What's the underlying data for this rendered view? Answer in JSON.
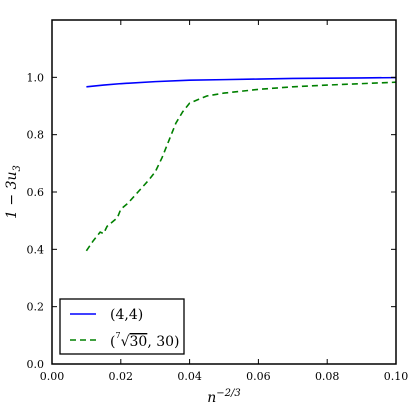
{
  "chart_data": {
    "type": "line",
    "title": "",
    "xlabel": "n^{-2/3}",
    "ylabel": "1 - 3u_3",
    "xlim": [
      0.0,
      0.1
    ],
    "ylim": [
      0.0,
      1.2
    ],
    "xticks": [
      0.0,
      0.02,
      0.04,
      0.06,
      0.08,
      0.1
    ],
    "xtick_labels": [
      "0.00",
      "0.02",
      "0.04",
      "0.06",
      "0.08",
      "0.10"
    ],
    "yticks": [
      0.0,
      0.2,
      0.4,
      0.6,
      0.8,
      1.0
    ],
    "ytick_labels": [
      "0.0",
      "0.2",
      "0.4",
      "0.6",
      "0.8",
      "1.0"
    ],
    "grid": false,
    "legend_position": "bottom-left",
    "series": [
      {
        "name": "(4,4)",
        "color": "#0000ff",
        "style": "solid",
        "x": [
          0.01,
          0.015,
          0.02,
          0.03,
          0.04,
          0.05,
          0.06,
          0.07,
          0.08,
          0.09,
          0.1
        ],
        "y": [
          0.967,
          0.973,
          0.978,
          0.985,
          0.99,
          0.992,
          0.994,
          0.996,
          0.997,
          0.998,
          0.999
        ]
      },
      {
        "name": "(√[7]{30}, 30)",
        "color": "#008000",
        "style": "dashed",
        "x": [
          0.01,
          0.012,
          0.014,
          0.015,
          0.016,
          0.017,
          0.018,
          0.019,
          0.02,
          0.022,
          0.025,
          0.028,
          0.03,
          0.032,
          0.034,
          0.036,
          0.038,
          0.04,
          0.042,
          0.045,
          0.05,
          0.06,
          0.07,
          0.08,
          0.09,
          0.1
        ],
        "y": [
          0.395,
          0.43,
          0.46,
          0.455,
          0.48,
          0.49,
          0.5,
          0.51,
          0.54,
          0.56,
          0.6,
          0.64,
          0.67,
          0.72,
          0.78,
          0.84,
          0.88,
          0.91,
          0.92,
          0.935,
          0.945,
          0.958,
          0.967,
          0.973,
          0.978,
          0.983
        ]
      }
    ]
  }
}
